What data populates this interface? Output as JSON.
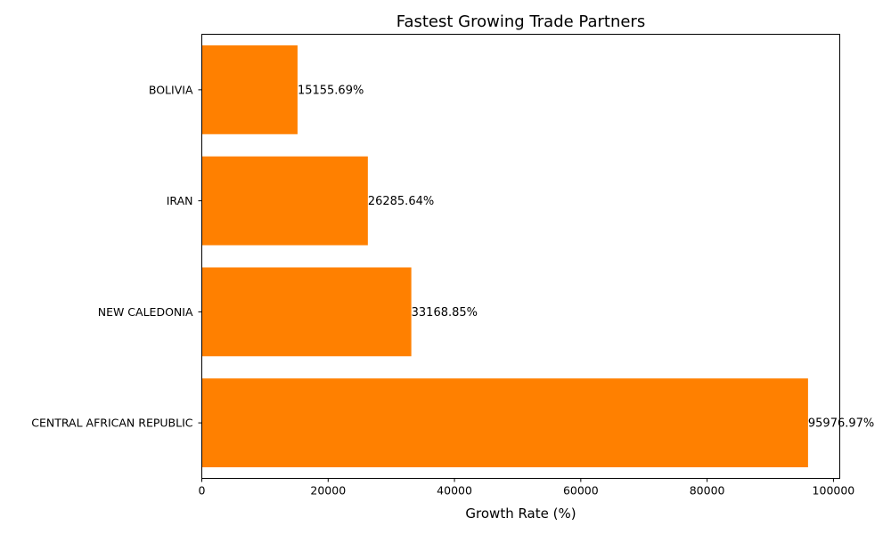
{
  "chart_data": {
    "type": "bar",
    "orientation": "horizontal",
    "title": "Fastest Growing Trade Partners",
    "xlabel": "Growth Rate (%)",
    "ylabel": "",
    "xlim": [
      0,
      101000
    ],
    "x_ticks": [
      0,
      20000,
      40000,
      60000,
      80000,
      100000
    ],
    "x_tick_labels": [
      "0",
      "20000",
      "40000",
      "60000",
      "80000",
      "100000"
    ],
    "categories": [
      "BOLIVIA",
      "IRAN",
      "NEW CALEDONIA",
      "CENTRAL AFRICAN REPUBLIC"
    ],
    "values": [
      15155.69,
      26285.64,
      33168.85,
      95976.97
    ],
    "value_labels": [
      "15155.69%",
      "26285.64%",
      "33168.85%",
      "95976.97%"
    ],
    "bar_color": "#ff8000",
    "grid": false,
    "legend": "none"
  }
}
